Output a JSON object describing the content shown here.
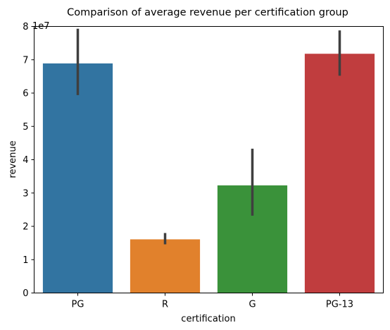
{
  "chart_data": {
    "type": "bar",
    "title": "Comparison of average revenue per certification group",
    "xlabel": "certification",
    "ylabel": "revenue",
    "y_offset_label": "1e7",
    "categories": [
      "PG",
      "R",
      "G",
      "PG-13"
    ],
    "values": [
      68900000,
      16100000,
      32300000,
      71800000
    ],
    "error_low": [
      59400000,
      14600000,
      23200000,
      65200000
    ],
    "error_high": [
      79300000,
      18000000,
      43300000,
      78800000
    ],
    "colors": [
      "#3274a1",
      "#e1812c",
      "#3a923a",
      "#c03d3e"
    ],
    "ylim": [
      0,
      80000000
    ],
    "yticks": [
      0,
      10000000,
      20000000,
      30000000,
      40000000,
      50000000,
      60000000,
      70000000,
      80000000
    ],
    "ytick_labels": [
      "0",
      "1",
      "2",
      "3",
      "4",
      "5",
      "6",
      "7",
      "8"
    ],
    "grid": false,
    "legend": false
  }
}
